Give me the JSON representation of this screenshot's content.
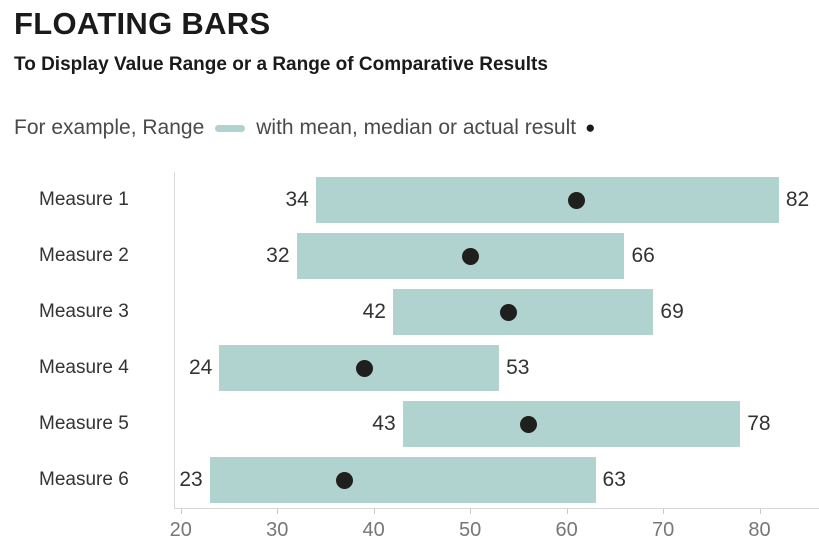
{
  "chart_data": {
    "type": "bar",
    "variant": "floating-range-bar",
    "orientation": "horizontal",
    "title": "FLOATING BARS",
    "subtitle": "To Display Value Range or a Range of Comparative Results",
    "legend": {
      "range_label": "For example, Range",
      "result_label": "with mean, median or actual result",
      "marker_glyph": "●"
    },
    "categories": [
      "Measure 1",
      "Measure 2",
      "Measure 3",
      "Measure 4",
      "Measure 5",
      "Measure 6"
    ],
    "series": [
      {
        "name": "range_min",
        "values": [
          34,
          32,
          42,
          24,
          43,
          23
        ]
      },
      {
        "name": "range_max",
        "values": [
          82,
          66,
          69,
          53,
          78,
          63
        ]
      },
      {
        "name": "result",
        "values": [
          61,
          50,
          54,
          39,
          56,
          37
        ]
      }
    ],
    "xlabel": "",
    "ylabel": "",
    "xlim": [
      19.3,
      87.2
    ],
    "x_ticks": [
      20,
      30,
      40,
      50,
      60,
      70,
      80
    ],
    "grid": "off",
    "legend_position": "top",
    "colors": {
      "bar": "#b1d3d0",
      "dot": "#1f1f1f",
      "title": "#1a1a1a",
      "legend_text": "#4a4a4a",
      "label": "#333333",
      "tick_label": "#777777",
      "axis_line": "#d9d9d9"
    }
  }
}
